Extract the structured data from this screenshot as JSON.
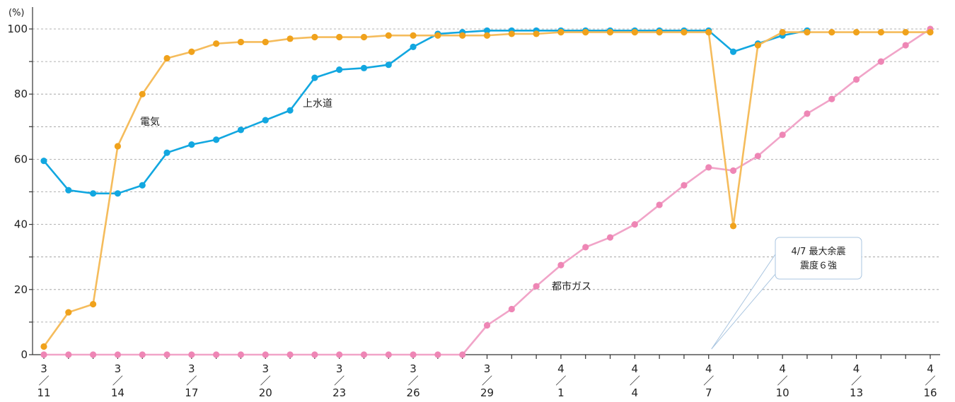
{
  "chart_data": {
    "type": "line",
    "y_unit": "(%)",
    "ylim": [
      0,
      100
    ],
    "y_ticks": [
      0,
      20,
      40,
      60,
      80,
      100
    ],
    "y_minor_ticks": [
      10,
      30,
      50,
      70,
      90
    ],
    "grid": "horizontal dashed",
    "x": [
      "3/11",
      "3/12",
      "3/13",
      "3/14",
      "3/15",
      "3/16",
      "3/17",
      "3/18",
      "3/19",
      "3/20",
      "3/21",
      "3/22",
      "3/23",
      "3/24",
      "3/25",
      "3/26",
      "3/27",
      "3/28",
      "3/29",
      "3/30",
      "3/31",
      "4/1",
      "4/2",
      "4/3",
      "4/4",
      "4/5",
      "4/6",
      "4/7",
      "4/8",
      "4/9",
      "4/10",
      "4/11",
      "4/12",
      "4/13",
      "4/14",
      "4/15",
      "4/16"
    ],
    "x_tick_labels": [
      {
        "index": 0,
        "month": "3",
        "day": "11"
      },
      {
        "index": 3,
        "month": "3",
        "day": "14"
      },
      {
        "index": 6,
        "month": "3",
        "day": "17"
      },
      {
        "index": 9,
        "month": "3",
        "day": "20"
      },
      {
        "index": 12,
        "month": "3",
        "day": "23"
      },
      {
        "index": 15,
        "month": "3",
        "day": "26"
      },
      {
        "index": 18,
        "month": "3",
        "day": "29"
      },
      {
        "index": 21,
        "month": "4",
        "day": "1"
      },
      {
        "index": 24,
        "month": "4",
        "day": "4"
      },
      {
        "index": 27,
        "month": "4",
        "day": "7"
      },
      {
        "index": 30,
        "month": "4",
        "day": "10"
      },
      {
        "index": 33,
        "month": "4",
        "day": "13"
      },
      {
        "index": 36,
        "month": "4",
        "day": "16"
      }
    ],
    "date_separator": "／",
    "series": [
      {
        "name": "電気",
        "color": "#f0a21c",
        "line_color": "#f5bc5c",
        "values": [
          2.5,
          13,
          15.5,
          64,
          80,
          91,
          93,
          95.5,
          96,
          96,
          97,
          97.5,
          97.5,
          97.5,
          98,
          98,
          98,
          98,
          98,
          98.5,
          98.5,
          99,
          99,
          99,
          99,
          99,
          99,
          99,
          39.5,
          95,
          99,
          99,
          99,
          99,
          99,
          99,
          99
        ]
      },
      {
        "name": "上水道",
        "color": "#12a7e0",
        "line_color": "#12a7e0",
        "values": [
          59.5,
          50.5,
          49.5,
          49.5,
          52,
          62,
          64.5,
          66,
          69,
          72,
          75,
          85,
          87.5,
          88,
          89,
          94.5,
          98.5,
          99,
          99.5,
          99.5,
          99.5,
          99.5,
          99.5,
          99.5,
          99.5,
          99.5,
          99.5,
          99.5,
          93,
          95.5,
          98,
          99.5,
          null,
          null,
          null,
          null,
          null
        ]
      },
      {
        "name": "都市ガス",
        "color": "#ee86b5",
        "line_color": "#f1a4c8",
        "values": [
          0,
          0,
          0,
          0,
          0,
          0,
          0,
          0,
          0,
          0,
          0,
          0,
          0,
          0,
          0,
          0,
          0,
          0,
          9,
          14,
          21,
          27.5,
          33,
          36,
          40,
          46,
          52,
          57.5,
          56.5,
          61,
          67.5,
          74,
          78.5,
          84.5,
          90,
          95,
          100
        ]
      }
    ],
    "annotation": {
      "line1": "4/7 最大余震",
      "line2": "震度６強",
      "points_to": "4/7"
    }
  }
}
